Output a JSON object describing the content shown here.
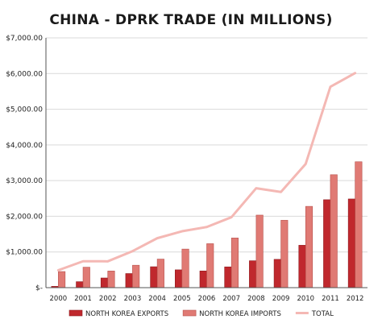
{
  "chart_data": {
    "type": "bar",
    "title": "CHINA - DPRK TRADE (IN MILLIONS)",
    "xlabel": "",
    "ylabel": "",
    "categories": [
      "2000",
      "2001",
      "2002",
      "2003",
      "2004",
      "2005",
      "2006",
      "2007",
      "2008",
      "2009",
      "2010",
      "2011",
      "2012"
    ],
    "ylim": [
      0,
      7000
    ],
    "yticks": [
      0,
      1000,
      2000,
      3000,
      4000,
      5000,
      6000,
      7000
    ],
    "ytick_labels": [
      "$-",
      "$1,000.00",
      "$2,000.00",
      "$3,000.00",
      "$4,000.00",
      "$5,000.00",
      "$6,000.00",
      "$7,000.00"
    ],
    "grid": true,
    "legend_position": "bottom",
    "series": [
      {
        "name": "NORTH KOREA EXPORTS",
        "kind": "bar",
        "color": "#c0282d",
        "values": [
          37,
          167,
          271,
          395,
          586,
          499,
          468,
          582,
          754,
          793,
          1188,
          2464,
          2485
        ]
      },
      {
        "name": "NORTH KOREA IMPORTS",
        "kind": "bar",
        "color": "#e07a74",
        "values": [
          451,
          573,
          467,
          628,
          800,
          1081,
          1232,
          1392,
          2033,
          1888,
          2278,
          3165,
          3528
        ]
      },
      {
        "name": "TOTAL",
        "kind": "line",
        "color": "#f4b8b4",
        "values": [
          488,
          740,
          738,
          1023,
          1386,
          1580,
          1700,
          1974,
          2787,
          2681,
          3466,
          5629,
          6013
        ]
      }
    ]
  }
}
